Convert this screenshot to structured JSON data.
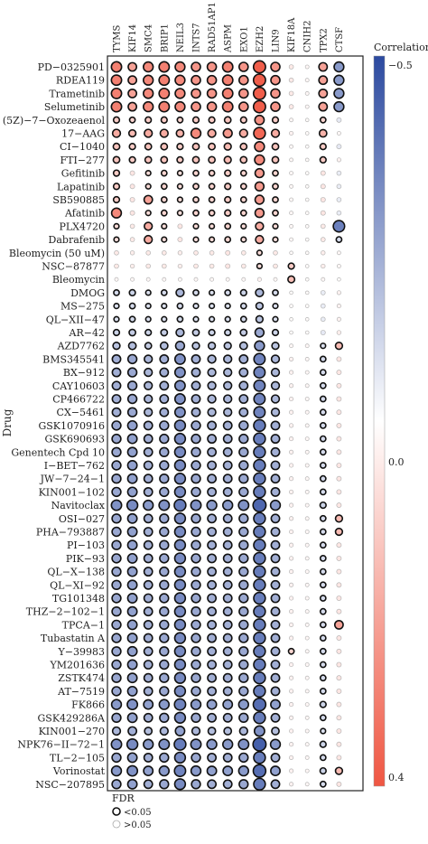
{
  "chart_data": {
    "type": "scatter",
    "ylabel": "Drug",
    "genes": [
      "TYMS",
      "KIF14",
      "SMC4",
      "BRIP1",
      "NEIL3",
      "INTS7",
      "RAD51AP1",
      "ASPM",
      "EXO1",
      "EZH2",
      "LIN9",
      "KIF18A",
      "CNIH2",
      "TPX2",
      "CTSF"
    ],
    "drugs": [
      "PD−0325901",
      "RDEA119",
      "Trametinib",
      "Selumetinib",
      "(5Z)−7−Oxozeaenol",
      "17−AAG",
      "CI−1040",
      "FTI−277",
      "Gefitinib",
      "Lapatinib",
      "SB590885",
      "Afatinib",
      "PLX4720",
      "Dabrafenib",
      "Bleomycin (50 uM)",
      "NSC−87877",
      "Bleomycin",
      "DMOG",
      "MS−275",
      "QL−XII−47",
      "AR−42",
      "AZD7762",
      "BMS345541",
      "BX−912",
      "CAY10603",
      "CP466722",
      "CX−5461",
      "GSK1070916",
      "GSK690693",
      "Genentech Cpd 10",
      "I−BET−762",
      "JW−7−24−1",
      "KIN001−102",
      "Navitoclax",
      "OSI−027",
      "PHA−793887",
      "PI−103",
      "PIK−93",
      "QL−X−138",
      "QL−XI−92",
      "TG101348",
      "THZ−2−102−1",
      "TPCA−1",
      "Tubastatin A",
      "Y−39983",
      "YM201636",
      "ZSTK474",
      "AT−7519",
      "FK866",
      "GSK429286A",
      "KIN001−270",
      "NPK76−II−72−1",
      "TL−2−105",
      "Vorinostat",
      "NSC−207895"
    ],
    "values": [
      [
        0.3,
        0.22,
        0.28,
        0.3,
        0.28,
        0.25,
        0.25,
        0.3,
        0.25,
        0.38,
        0.25,
        0.05,
        0.02,
        0.22,
        -0.28
      ],
      [
        0.3,
        0.22,
        0.28,
        0.3,
        0.28,
        0.25,
        0.25,
        0.3,
        0.25,
        0.38,
        0.25,
        0.05,
        0.02,
        0.22,
        -0.28
      ],
      [
        0.3,
        0.22,
        0.28,
        0.3,
        0.28,
        0.25,
        0.25,
        0.3,
        0.25,
        0.38,
        0.25,
        0.05,
        0.02,
        0.22,
        -0.28
      ],
      [
        0.3,
        0.22,
        0.28,
        0.3,
        0.28,
        0.25,
        0.25,
        0.3,
        0.25,
        0.38,
        0.25,
        0.05,
        0.02,
        0.22,
        -0.28
      ],
      [
        0.12,
        0.1,
        0.12,
        0.12,
        0.1,
        0.12,
        0.12,
        0.14,
        0.12,
        0.26,
        0.12,
        0.02,
        0.01,
        0.1,
        -0.06
      ],
      [
        0.2,
        0.16,
        0.2,
        0.2,
        0.18,
        0.28,
        0.2,
        0.24,
        0.2,
        0.36,
        0.2,
        0.03,
        0.01,
        0.18,
        0.02
      ],
      [
        0.14,
        0.12,
        0.14,
        0.14,
        0.12,
        0.14,
        0.14,
        0.16,
        0.14,
        0.28,
        0.14,
        0.02,
        0.01,
        0.12,
        -0.06
      ],
      [
        0.14,
        0.12,
        0.14,
        0.14,
        0.12,
        0.14,
        0.14,
        0.16,
        0.14,
        0.28,
        0.14,
        0.02,
        0.01,
        0.12,
        0.03
      ],
      [
        0.12,
        0.06,
        0.08,
        0.1,
        0.08,
        0.1,
        0.1,
        0.12,
        0.1,
        0.24,
        0.1,
        0.02,
        0.01,
        0.06,
        -0.05
      ],
      [
        0.12,
        0.06,
        0.08,
        0.1,
        0.08,
        0.1,
        0.1,
        0.12,
        0.1,
        0.24,
        0.1,
        0.02,
        0.01,
        0.06,
        -0.05
      ],
      [
        0.12,
        0.06,
        0.22,
        0.1,
        0.08,
        0.1,
        0.1,
        0.12,
        0.1,
        0.24,
        0.1,
        0.02,
        0.01,
        0.06,
        -0.05
      ],
      [
        0.28,
        0.06,
        0.08,
        0.1,
        0.08,
        0.1,
        0.1,
        0.12,
        0.1,
        0.24,
        0.1,
        0.02,
        0.01,
        0.06,
        -0.05
      ],
      [
        0.08,
        0.05,
        0.2,
        0.08,
        0.06,
        0.08,
        0.08,
        0.1,
        0.08,
        0.2,
        0.08,
        0.02,
        0.01,
        0.05,
        -0.35
      ],
      [
        0.08,
        0.05,
        0.2,
        0.08,
        0.06,
        0.08,
        0.08,
        0.1,
        0.08,
        0.2,
        0.08,
        0.02,
        0.01,
        0.05,
        -0.1
      ],
      [
        0.05,
        0.04,
        0.05,
        0.05,
        0.04,
        0.05,
        0.05,
        0.06,
        0.05,
        0.08,
        0.05,
        0.01,
        0.01,
        0.04,
        0.02
      ],
      [
        0.05,
        0.04,
        0.05,
        0.05,
        0.04,
        0.05,
        0.05,
        0.06,
        0.05,
        0.08,
        0.05,
        0.12,
        0.01,
        0.04,
        0.02
      ],
      [
        0.02,
        0.02,
        0.02,
        0.02,
        0.02,
        0.02,
        0.02,
        0.02,
        0.02,
        0.03,
        0.02,
        0.15,
        0.01,
        0.02,
        0.01
      ],
      [
        -0.1,
        -0.12,
        -0.08,
        -0.1,
        -0.2,
        -0.1,
        -0.08,
        -0.1,
        -0.12,
        -0.2,
        -0.1,
        0.01,
        0.01,
        -0.05,
        0.03
      ],
      [
        -0.08,
        -0.1,
        -0.08,
        -0.08,
        -0.1,
        -0.08,
        -0.08,
        -0.08,
        -0.1,
        -0.16,
        -0.08,
        0.01,
        0.01,
        -0.05,
        0.03
      ],
      [
        -0.08,
        -0.1,
        -0.08,
        -0.08,
        -0.1,
        -0.08,
        -0.08,
        -0.08,
        -0.1,
        -0.16,
        -0.08,
        0.01,
        0.01,
        -0.05,
        0.03
      ],
      [
        -0.12,
        -0.14,
        -0.12,
        -0.14,
        -0.2,
        -0.14,
        -0.12,
        -0.12,
        -0.14,
        -0.24,
        -0.12,
        0.01,
        0.01,
        -0.06,
        0.04
      ],
      [
        -0.16,
        -0.18,
        -0.14,
        -0.18,
        -0.24,
        -0.16,
        -0.16,
        -0.16,
        -0.18,
        -0.28,
        -0.16,
        0.02,
        0.02,
        -0.08,
        0.16
      ],
      [
        -0.22,
        -0.24,
        -0.2,
        -0.22,
        -0.3,
        -0.22,
        -0.2,
        -0.2,
        -0.22,
        -0.34,
        -0.2,
        0.03,
        0.02,
        -0.1,
        0.06
      ],
      [
        -0.22,
        -0.24,
        -0.2,
        -0.22,
        -0.3,
        -0.22,
        -0.2,
        -0.2,
        -0.22,
        -0.34,
        -0.2,
        0.03,
        0.02,
        -0.1,
        0.06
      ],
      [
        -0.22,
        -0.24,
        -0.2,
        -0.22,
        -0.3,
        -0.22,
        -0.2,
        -0.2,
        -0.22,
        -0.34,
        -0.2,
        0.03,
        0.02,
        -0.1,
        0.06
      ],
      [
        -0.22,
        -0.24,
        -0.2,
        -0.22,
        -0.3,
        -0.22,
        -0.2,
        -0.2,
        -0.22,
        -0.34,
        -0.2,
        0.03,
        0.02,
        -0.1,
        0.06
      ],
      [
        -0.22,
        -0.24,
        -0.2,
        -0.22,
        -0.3,
        -0.22,
        -0.2,
        -0.2,
        -0.22,
        -0.34,
        -0.2,
        0.03,
        0.02,
        -0.1,
        0.06
      ],
      [
        -0.24,
        -0.26,
        -0.22,
        -0.24,
        -0.32,
        -0.24,
        -0.22,
        -0.22,
        -0.24,
        -0.36,
        -0.22,
        0.03,
        0.02,
        -0.1,
        0.06
      ],
      [
        -0.24,
        -0.26,
        -0.22,
        -0.24,
        -0.32,
        -0.24,
        -0.22,
        -0.22,
        -0.24,
        -0.36,
        -0.22,
        0.03,
        0.02,
        -0.1,
        0.06
      ],
      [
        -0.24,
        -0.26,
        -0.22,
        -0.24,
        -0.32,
        -0.24,
        -0.22,
        -0.22,
        -0.24,
        -0.36,
        -0.22,
        0.03,
        0.02,
        -0.1,
        0.06
      ],
      [
        -0.24,
        -0.26,
        -0.22,
        -0.24,
        -0.32,
        -0.24,
        -0.22,
        -0.22,
        -0.24,
        -0.36,
        -0.22,
        0.03,
        0.02,
        -0.1,
        0.06
      ],
      [
        -0.24,
        -0.26,
        -0.22,
        -0.24,
        -0.32,
        -0.24,
        -0.22,
        -0.22,
        -0.24,
        -0.36,
        -0.22,
        0.03,
        0.02,
        -0.1,
        0.06
      ],
      [
        -0.24,
        -0.26,
        -0.22,
        -0.24,
        -0.32,
        -0.24,
        -0.22,
        -0.22,
        -0.24,
        -0.36,
        -0.22,
        0.03,
        0.02,
        -0.1,
        0.06
      ],
      [
        -0.3,
        -0.32,
        -0.28,
        -0.3,
        -0.36,
        -0.3,
        -0.28,
        -0.28,
        -0.3,
        -0.42,
        -0.28,
        0.03,
        0.02,
        -0.12,
        0.06
      ],
      [
        -0.24,
        -0.26,
        -0.22,
        -0.24,
        -0.32,
        -0.24,
        -0.22,
        -0.22,
        -0.24,
        -0.36,
        -0.22,
        0.03,
        0.02,
        -0.1,
        0.16
      ],
      [
        -0.24,
        -0.26,
        -0.22,
        -0.24,
        -0.32,
        -0.24,
        -0.22,
        -0.22,
        -0.24,
        -0.36,
        -0.22,
        0.03,
        0.02,
        -0.1,
        0.16
      ],
      [
        -0.24,
        -0.26,
        -0.22,
        -0.24,
        -0.32,
        -0.24,
        -0.22,
        -0.22,
        -0.24,
        -0.36,
        -0.22,
        0.03,
        0.02,
        -0.1,
        0.06
      ],
      [
        -0.24,
        -0.26,
        -0.22,
        -0.24,
        -0.32,
        -0.24,
        -0.22,
        -0.22,
        -0.24,
        -0.36,
        -0.22,
        0.03,
        0.02,
        -0.1,
        0.06
      ],
      [
        -0.24,
        -0.26,
        -0.22,
        -0.24,
        -0.32,
        -0.24,
        -0.22,
        -0.22,
        -0.24,
        -0.36,
        -0.22,
        0.03,
        0.02,
        -0.1,
        0.06
      ],
      [
        -0.24,
        -0.26,
        -0.22,
        -0.24,
        -0.32,
        -0.24,
        -0.22,
        -0.22,
        -0.24,
        -0.36,
        -0.22,
        0.03,
        0.02,
        -0.1,
        0.06
      ],
      [
        -0.24,
        -0.26,
        -0.22,
        -0.24,
        -0.32,
        -0.24,
        -0.22,
        -0.22,
        -0.24,
        -0.36,
        -0.22,
        0.03,
        0.02,
        -0.1,
        0.06
      ],
      [
        -0.24,
        -0.26,
        -0.22,
        -0.24,
        -0.32,
        -0.24,
        -0.22,
        -0.22,
        -0.24,
        -0.36,
        -0.22,
        0.03,
        0.02,
        -0.1,
        0.06
      ],
      [
        -0.24,
        -0.26,
        -0.22,
        -0.24,
        -0.32,
        -0.24,
        -0.22,
        -0.22,
        -0.24,
        -0.36,
        -0.22,
        0.03,
        0.02,
        -0.1,
        0.22
      ],
      [
        -0.24,
        -0.26,
        -0.22,
        -0.24,
        -0.32,
        -0.24,
        -0.22,
        -0.22,
        -0.24,
        -0.36,
        -0.22,
        0.03,
        0.02,
        -0.1,
        0.06
      ],
      [
        -0.24,
        -0.26,
        -0.22,
        -0.24,
        -0.32,
        -0.24,
        -0.22,
        -0.22,
        -0.24,
        -0.36,
        -0.22,
        0.1,
        0.02,
        -0.1,
        0.06
      ],
      [
        -0.24,
        -0.26,
        -0.22,
        -0.24,
        -0.32,
        -0.24,
        -0.22,
        -0.22,
        -0.24,
        -0.36,
        -0.22,
        0.03,
        0.02,
        -0.1,
        0.06
      ],
      [
        -0.24,
        -0.26,
        -0.22,
        -0.24,
        -0.32,
        -0.24,
        -0.22,
        -0.22,
        -0.24,
        -0.36,
        -0.22,
        0.03,
        0.02,
        -0.1,
        0.06
      ],
      [
        -0.24,
        -0.26,
        -0.22,
        -0.24,
        -0.32,
        -0.24,
        -0.22,
        -0.22,
        -0.24,
        -0.36,
        -0.22,
        0.03,
        0.02,
        -0.1,
        0.06
      ],
      [
        -0.28,
        -0.3,
        -0.26,
        -0.28,
        -0.34,
        -0.28,
        -0.26,
        -0.26,
        -0.28,
        -0.4,
        -0.26,
        0.03,
        0.02,
        -0.12,
        0.06
      ],
      [
        -0.24,
        -0.26,
        -0.22,
        -0.24,
        -0.32,
        -0.24,
        -0.22,
        -0.22,
        -0.24,
        -0.36,
        -0.22,
        0.03,
        0.02,
        -0.1,
        0.06
      ],
      [
        -0.2,
        -0.22,
        -0.18,
        -0.2,
        -0.26,
        -0.2,
        -0.18,
        -0.18,
        -0.2,
        -0.3,
        -0.18,
        0.03,
        0.02,
        -0.08,
        0.06
      ],
      [
        -0.3,
        -0.32,
        -0.28,
        -0.3,
        -0.36,
        -0.3,
        -0.28,
        -0.28,
        -0.3,
        -0.44,
        -0.28,
        0.03,
        0.02,
        -0.12,
        0.06
      ],
      [
        -0.24,
        -0.26,
        -0.22,
        -0.24,
        -0.32,
        -0.24,
        -0.22,
        -0.22,
        -0.24,
        -0.36,
        -0.22,
        0.03,
        0.02,
        -0.1,
        0.06
      ],
      [
        -0.28,
        -0.3,
        -0.26,
        -0.28,
        -0.34,
        -0.28,
        -0.26,
        -0.26,
        -0.28,
        -0.4,
        -0.26,
        0.03,
        0.02,
        -0.12,
        0.16
      ],
      [
        -0.24,
        -0.26,
        -0.22,
        -0.24,
        -0.32,
        -0.24,
        -0.22,
        -0.22,
        -0.24,
        -0.36,
        -0.22,
        0.03,
        0.02,
        -0.1,
        0.06
      ]
    ],
    "legend": {
      "title": "Correlation",
      "max_label": "−0.5",
      "mid_label": "0.0",
      "min_label": "0.4",
      "range": [
        -0.5,
        0.4
      ],
      "colors": {
        "negative": "#2c4aa0",
        "zero": "#ffffff",
        "positive": "#ef5642"
      }
    },
    "fdr_legend": {
      "title": "FDR",
      "items": [
        {
          "label": "<0.05",
          "significant": true
        },
        {
          "label": ">0.05",
          "significant": false
        }
      ]
    }
  }
}
